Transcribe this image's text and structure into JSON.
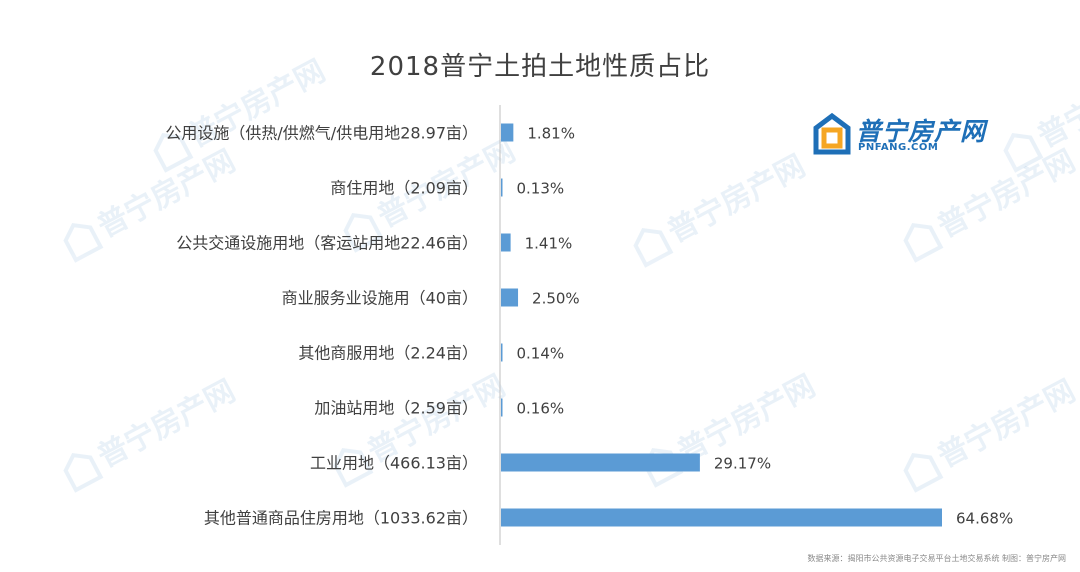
{
  "chart_data": {
    "type": "bar",
    "orientation": "horizontal",
    "title": "2018普宁土拍土地性质占比",
    "categories": [
      "公用设施（供热/供燃气/供电用地28.97亩）",
      "商住用地（2.09亩）",
      "公共交通设施用地（客运站用地22.46亩）",
      "商业服务业设施用（40亩）",
      "其他商服用地（2.24亩）",
      "加油站用地（2.59亩）",
      "工业用地（466.13亩）",
      "其他普通商品住房用地（1033.62亩）"
    ],
    "values": [
      1.81,
      0.13,
      1.41,
      2.5,
      0.14,
      0.16,
      29.17,
      64.68
    ],
    "value_labels": [
      "1.81%",
      "0.13%",
      "1.41%",
      "2.50%",
      "0.14%",
      "0.16%",
      "29.17%",
      "64.68%"
    ],
    "xlim": [
      0,
      64.68
    ],
    "grid": false,
    "legend": "none",
    "bar_color": "#5b9bd5"
  },
  "logo": {
    "text": "普宁房产网",
    "sub": "PNFANG.COM",
    "color": "#1e6fb7",
    "accent": "#f5a623"
  },
  "footer": "数据来源：揭阳市公共资源电子交易平台土地交易系统  制图：普宁房产网"
}
